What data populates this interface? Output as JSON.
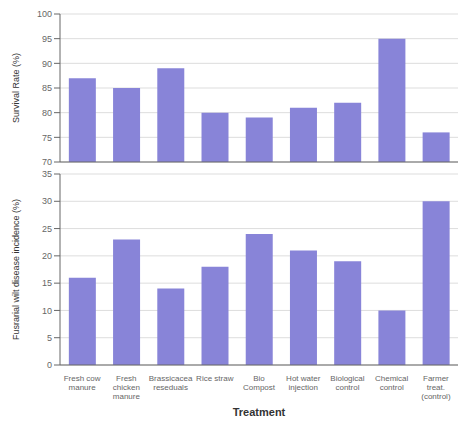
{
  "chart_data": [
    {
      "type": "bar",
      "categories": [
        null,
        null,
        null,
        null,
        null,
        null,
        null,
        null,
        null
      ],
      "values": [
        87,
        85,
        89,
        80,
        79,
        81,
        82,
        95,
        76
      ],
      "ylabel": "Survival Rate (%)",
      "ylim": [
        70,
        100
      ],
      "yticks": [
        70,
        75,
        80,
        85,
        90,
        95,
        100
      ],
      "grid": true,
      "color": "#8884d8"
    },
    {
      "type": "bar",
      "categories": [
        "Fresh cow\nmanure",
        "Fresh\nchicken\nmanure",
        "Brassicacea\nreseduals",
        "Rice straw",
        "Bio\nCompost",
        "Hot water\ninjection",
        "Biological\ncontrol",
        "Chemical\ncontrol",
        "Farmer\ntreat.\n(control)"
      ],
      "values": [
        16,
        23,
        14,
        18,
        24,
        21,
        19,
        10,
        30
      ],
      "xlabel": "Treatment",
      "ylabel": "Fusrarial wilt disease incidence (%)",
      "ylim": [
        0,
        35
      ],
      "yticks": [
        0,
        5,
        10,
        15,
        20,
        25,
        30,
        35
      ],
      "grid": true,
      "color": "#8884d8"
    }
  ]
}
